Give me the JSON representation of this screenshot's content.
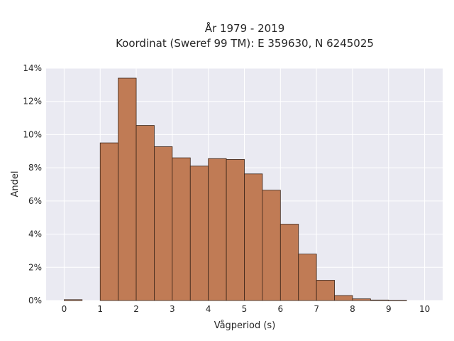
{
  "chart_data": {
    "type": "bar",
    "title": "År 1979 - 2019",
    "subtitle": "Koordinat (Sweref 99 TM): E 359630, N 6245025",
    "xlabel": "Vågperiod (s)",
    "ylabel": "Andel",
    "xlim": [
      -0.5,
      10.5
    ],
    "ylim": [
      0,
      14
    ],
    "x_ticks": [
      0,
      1,
      2,
      3,
      4,
      5,
      6,
      7,
      8,
      9,
      10
    ],
    "y_ticks": [
      "0%",
      "2%",
      "4%",
      "6%",
      "8%",
      "10%",
      "12%",
      "14%"
    ],
    "y_tick_values": [
      0,
      2,
      4,
      6,
      8,
      10,
      12,
      14
    ],
    "bin_width": 0.5,
    "bins": [
      {
        "start": 0.0,
        "value": 0.05
      },
      {
        "start": 1.0,
        "value": 9.5
      },
      {
        "start": 1.5,
        "value": 13.4
      },
      {
        "start": 2.0,
        "value": 10.55
      },
      {
        "start": 2.5,
        "value": 9.27
      },
      {
        "start": 3.0,
        "value": 8.6
      },
      {
        "start": 3.5,
        "value": 8.1
      },
      {
        "start": 4.0,
        "value": 8.55
      },
      {
        "start": 4.5,
        "value": 8.5
      },
      {
        "start": 5.0,
        "value": 7.63
      },
      {
        "start": 5.5,
        "value": 6.65
      },
      {
        "start": 6.0,
        "value": 4.6
      },
      {
        "start": 6.5,
        "value": 2.8
      },
      {
        "start": 7.0,
        "value": 1.22
      },
      {
        "start": 7.5,
        "value": 0.3
      },
      {
        "start": 8.0,
        "value": 0.1
      },
      {
        "start": 8.5,
        "value": 0.03
      },
      {
        "start": 9.0,
        "value": 0.01
      }
    ],
    "grid": true,
    "bar_color": "#c07b55",
    "bar_edge_color": "#3a2418",
    "plot_background": "#eaeaf2",
    "grid_color": "#ffffff"
  }
}
